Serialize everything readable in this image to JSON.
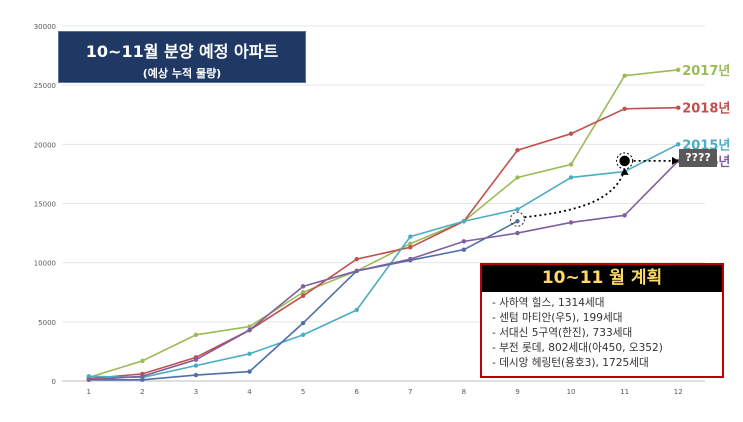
{
  "title": {
    "main": "10~11월 분양 예정 아파트",
    "sub": "(예상 누적 물량)"
  },
  "plan": {
    "heading": "10~11 월 계획",
    "items": [
      "- 사하역 힐스, 1314세대",
      "- 센텀 마티안(우5), 199세대",
      "- 서대신 5구역(한진), 733세대",
      "- 부전 롯데, 802세대(아450, 오352)",
      "- 데시앙 헤링턴(용호3), 1725세대"
    ]
  },
  "forecast_label": "????",
  "colors": {
    "s2017": "#9bbb59",
    "s2018": "#c0504d",
    "s2015": "#4bacc6",
    "s2016": "#4f6fa8"
  },
  "chart_data": {
    "type": "line",
    "x": [
      1,
      2,
      3,
      4,
      5,
      6,
      7,
      8,
      9,
      10,
      11,
      12
    ],
    "xlim": [
      0.5,
      12.5
    ],
    "ylim": [
      0,
      30000
    ],
    "yticks": [
      0,
      5000,
      10000,
      15000,
      20000,
      25000,
      30000
    ],
    "grid": true,
    "legend": "right end of lines",
    "series": [
      {
        "name": "2017년",
        "color": "#9bbb59",
        "values": [
          300,
          1700,
          3900,
          4600,
          7500,
          9300,
          11600,
          13500,
          17200,
          18300,
          25800,
          26300
        ]
      },
      {
        "name": "2018년",
        "color": "#c0504d",
        "values": [
          200,
          600,
          2000,
          4300,
          7200,
          10300,
          11300,
          13500,
          19500,
          20900,
          23000,
          23100
        ]
      },
      {
        "name": "2015년",
        "color": "#4bacc6",
        "values": [
          400,
          300,
          1300,
          2300,
          3900,
          6000,
          12200,
          13500,
          14500,
          17200,
          17700,
          20000
        ]
      },
      {
        "name": "2016년",
        "color": "#4f6fa8",
        "values": [
          100,
          100,
          500,
          800,
          4900,
          9300,
          10200,
          11100,
          13500,
          null,
          null,
          null
        ]
      },
      {
        "name": "",
        "color": "#7f5f9f",
        "values": [
          100,
          400,
          1800,
          4300,
          8000,
          9300,
          10300,
          11800,
          12500,
          13400,
          14000,
          18600
        ]
      }
    ],
    "labels": [
      "2017년",
      "2018년",
      "2015년",
      "2016년"
    ]
  }
}
